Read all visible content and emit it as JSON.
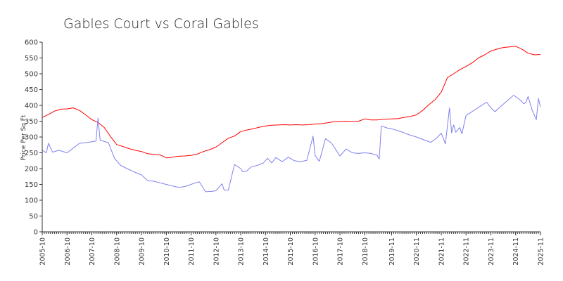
{
  "chart_data": {
    "type": "line",
    "title": "Gables Court vs Coral Gables",
    "xlabel": "",
    "ylabel": "Price Per Sq Ft",
    "ylim": [
      0,
      600
    ],
    "xlim": [
      "2005-10",
      "2025-11"
    ],
    "yticks": [
      0,
      50,
      100,
      150,
      200,
      250,
      300,
      350,
      400,
      450,
      500,
      550,
      600
    ],
    "xticks": [
      "2005-10",
      "2006-10",
      "2007-10",
      "2008-10",
      "2009-10",
      "2010-10",
      "2011-10",
      "2012-10",
      "2013-10",
      "2014-10",
      "2015-10",
      "2016-10",
      "2017-10",
      "2018-10",
      "2019-11",
      "2020-11",
      "2021-11",
      "2022-11",
      "2023-11",
      "2024-11",
      "2025-11"
    ],
    "grid": false,
    "legend": "none",
    "series": [
      {
        "color": "#ff0000",
        "points": [
          [
            "2005-10",
            362
          ],
          [
            "2006-01",
            371
          ],
          [
            "2006-04",
            382
          ],
          [
            "2006-07",
            388
          ],
          [
            "2006-10",
            389
          ],
          [
            "2007-01",
            392
          ],
          [
            "2007-04",
            384
          ],
          [
            "2007-07",
            370
          ],
          [
            "2007-10",
            355
          ],
          [
            "2008-01",
            346
          ],
          [
            "2008-04",
            330
          ],
          [
            "2008-07",
            302
          ],
          [
            "2008-10",
            276
          ],
          [
            "2009-01",
            270
          ],
          [
            "2009-04",
            263
          ],
          [
            "2009-07",
            258
          ],
          [
            "2009-10",
            254
          ],
          [
            "2010-01",
            247
          ],
          [
            "2010-04",
            245
          ],
          [
            "2010-07",
            243
          ],
          [
            "2010-10",
            234
          ],
          [
            "2011-01",
            236
          ],
          [
            "2011-04",
            239
          ],
          [
            "2011-07",
            240
          ],
          [
            "2011-10",
            242
          ],
          [
            "2012-01",
            246
          ],
          [
            "2012-04",
            254
          ],
          [
            "2012-07",
            260
          ],
          [
            "2012-10",
            268
          ],
          [
            "2013-01",
            282
          ],
          [
            "2013-04",
            296
          ],
          [
            "2013-07",
            303
          ],
          [
            "2013-10",
            317
          ],
          [
            "2014-01",
            322
          ],
          [
            "2014-04",
            326
          ],
          [
            "2014-07",
            331
          ],
          [
            "2014-10",
            335
          ],
          [
            "2015-01",
            337
          ],
          [
            "2015-04",
            338
          ],
          [
            "2015-07",
            339
          ],
          [
            "2015-10",
            338
          ],
          [
            "2016-01",
            339
          ],
          [
            "2016-04",
            338
          ],
          [
            "2016-07",
            339
          ],
          [
            "2016-10",
            341
          ],
          [
            "2017-01",
            342
          ],
          [
            "2017-04",
            345
          ],
          [
            "2017-07",
            348
          ],
          [
            "2017-10",
            349
          ],
          [
            "2018-01",
            350
          ],
          [
            "2018-04",
            349
          ],
          [
            "2018-07",
            350
          ],
          [
            "2018-10",
            357
          ],
          [
            "2019-01",
            354
          ],
          [
            "2019-04",
            354
          ],
          [
            "2019-07",
            356
          ],
          [
            "2019-11",
            357
          ],
          [
            "2020-02",
            358
          ],
          [
            "2020-05",
            362
          ],
          [
            "2020-08",
            365
          ],
          [
            "2020-11",
            370
          ],
          [
            "2021-02",
            384
          ],
          [
            "2021-05",
            402
          ],
          [
            "2021-08",
            418
          ],
          [
            "2021-11",
            442
          ],
          [
            "2022-02",
            488
          ],
          [
            "2022-05",
            500
          ],
          [
            "2022-08",
            513
          ],
          [
            "2022-11",
            523
          ],
          [
            "2023-02",
            535
          ],
          [
            "2023-05",
            550
          ],
          [
            "2023-08",
            560
          ],
          [
            "2023-11",
            572
          ],
          [
            "2024-02",
            578
          ],
          [
            "2024-05",
            583
          ],
          [
            "2024-08",
            585
          ],
          [
            "2024-11",
            587
          ],
          [
            "2025-02",
            578
          ],
          [
            "2025-05",
            565
          ],
          [
            "2025-08",
            560
          ],
          [
            "2025-11",
            561
          ]
        ]
      },
      {
        "color": "#8080ee",
        "points": [
          [
            "2005-10",
            258
          ],
          [
            "2005-12",
            250
          ],
          [
            "2006-01",
            280
          ],
          [
            "2006-03",
            252
          ],
          [
            "2006-06",
            258
          ],
          [
            "2006-10",
            250
          ],
          [
            "2007-01",
            265
          ],
          [
            "2007-04",
            280
          ],
          [
            "2007-07",
            282
          ],
          [
            "2007-10",
            285
          ],
          [
            "2007-12",
            287
          ],
          [
            "2008-01",
            360
          ],
          [
            "2008-02",
            290
          ],
          [
            "2008-06",
            282
          ],
          [
            "2008-09",
            232
          ],
          [
            "2008-12",
            210
          ],
          [
            "2009-03",
            200
          ],
          [
            "2009-07",
            188
          ],
          [
            "2009-10",
            180
          ],
          [
            "2010-01",
            162
          ],
          [
            "2010-04",
            160
          ],
          [
            "2010-07",
            155
          ],
          [
            "2010-10",
            150
          ],
          [
            "2011-01",
            145
          ],
          [
            "2011-04",
            141
          ],
          [
            "2011-07",
            143
          ],
          [
            "2011-10",
            150
          ],
          [
            "2011-12",
            155
          ],
          [
            "2012-02",
            158
          ],
          [
            "2012-05",
            127
          ],
          [
            "2012-08",
            128
          ],
          [
            "2012-10",
            130
          ],
          [
            "2013-01",
            152
          ],
          [
            "2013-02",
            132
          ],
          [
            "2013-04",
            132
          ],
          [
            "2013-07",
            213
          ],
          [
            "2013-10",
            200
          ],
          [
            "2013-11",
            190
          ],
          [
            "2014-01",
            193
          ],
          [
            "2014-03",
            205
          ],
          [
            "2014-06",
            210
          ],
          [
            "2014-09",
            218
          ],
          [
            "2014-11",
            233
          ],
          [
            "2015-01",
            218
          ],
          [
            "2015-03",
            235
          ],
          [
            "2015-06",
            222
          ],
          [
            "2015-09",
            236
          ],
          [
            "2015-12",
            225
          ],
          [
            "2016-03",
            222
          ],
          [
            "2016-06",
            226
          ],
          [
            "2016-09",
            303
          ],
          [
            "2016-10",
            242
          ],
          [
            "2016-12",
            223
          ],
          [
            "2017-03",
            295
          ],
          [
            "2017-06",
            280
          ],
          [
            "2017-10",
            240
          ],
          [
            "2018-01",
            262
          ],
          [
            "2018-04",
            250
          ],
          [
            "2018-07",
            248
          ],
          [
            "2018-10",
            250
          ],
          [
            "2019-01",
            248
          ],
          [
            "2019-04",
            242
          ],
          [
            "2019-05",
            230
          ],
          [
            "2019-06",
            335
          ],
          [
            "2019-09",
            328
          ],
          [
            "2019-11",
            326
          ],
          [
            "2020-03",
            318
          ],
          [
            "2020-07",
            308
          ],
          [
            "2020-11",
            300
          ],
          [
            "2021-03",
            290
          ],
          [
            "2021-06",
            283
          ],
          [
            "2021-09",
            298
          ],
          [
            "2021-11",
            312
          ],
          [
            "2022-01",
            278
          ],
          [
            "2022-03",
            392
          ],
          [
            "2022-04",
            313
          ],
          [
            "2022-05",
            338
          ],
          [
            "2022-06",
            315
          ],
          [
            "2022-08",
            330
          ],
          [
            "2022-09",
            310
          ],
          [
            "2022-11",
            368
          ],
          [
            "2023-03",
            385
          ],
          [
            "2023-06",
            398
          ],
          [
            "2023-09",
            410
          ],
          [
            "2023-11",
            392
          ],
          [
            "2024-01",
            380
          ],
          [
            "2024-04",
            398
          ],
          [
            "2024-07",
            415
          ],
          [
            "2024-10",
            432
          ],
          [
            "2025-01",
            418
          ],
          [
            "2025-03",
            405
          ],
          [
            "2025-04",
            410
          ],
          [
            "2025-05",
            428
          ],
          [
            "2025-07",
            385
          ],
          [
            "2025-09",
            355
          ],
          [
            "2025-10",
            422
          ],
          [
            "2025-11",
            395
          ]
        ]
      }
    ]
  }
}
